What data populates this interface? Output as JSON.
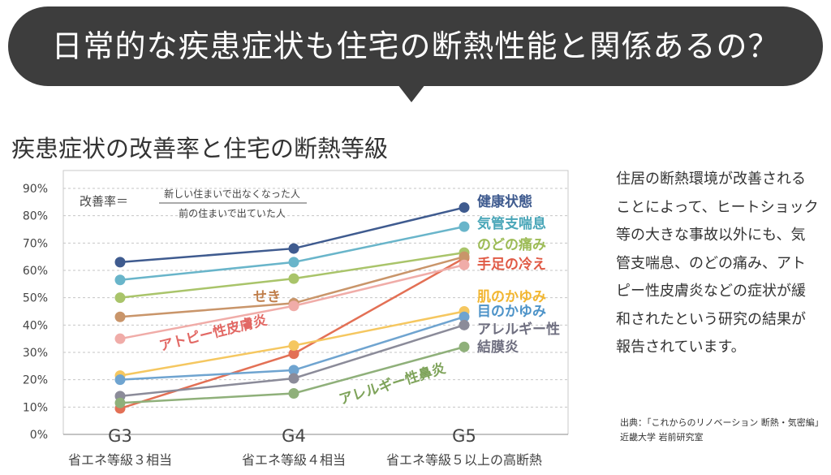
{
  "banner": {
    "title": "日常的な疾患症状も住宅の断熱性能と関係あるの？"
  },
  "subtitle": "疾患症状の改善率と住宅の断熱等級",
  "formula": {
    "label": "改善率＝",
    "numerator": "新しい住まいで出なくなった人",
    "denominator": "前の住まいで出ていた人"
  },
  "side_text": "住居の断熱環境が改善されることによって、ヒートショック等の大きな事故以外にも、気管支喘息、のどの痛み、アトピー性皮膚炎などの症状が緩和されたという研究の結果が報告されています。",
  "source": {
    "line1": "出典：「これからのリノベーション 断熱・気密編」",
    "line2": "近畿大学 岩前研究室"
  },
  "chart_data": {
    "type": "line",
    "categories": [
      "G3",
      "G4",
      "G5"
    ],
    "category_sublabels": [
      "省エネ等級３相当",
      "省エネ等級４相当",
      "省エネ等級５以上の高断熱"
    ],
    "ylim": [
      0,
      90
    ],
    "yticks": [
      "0%",
      "10%",
      "20%",
      "30%",
      "40%",
      "50%",
      "60%",
      "70%",
      "80%",
      "90%"
    ],
    "grid": "horizontal dashed",
    "series": [
      {
        "name": "健康状態",
        "color": "#3f5b8f",
        "values": [
          63,
          68,
          83
        ]
      },
      {
        "name": "気管支喘息",
        "color": "#69b5ca",
        "values": [
          56.5,
          63,
          76
        ]
      },
      {
        "name": "のどの痛み",
        "color": "#a9c46a",
        "values": [
          50,
          57,
          66.5
        ]
      },
      {
        "name": "手足の冷え",
        "color": "#e37055",
        "values": [
          9.5,
          29.5,
          64.5
        ]
      },
      {
        "name": "せき",
        "color": "#c9956a",
        "values": [
          43,
          48,
          65
        ]
      },
      {
        "name": "アトピー性皮膚炎",
        "color": "#f0aca8",
        "values": [
          35,
          47,
          62
        ]
      },
      {
        "name": "肌のかゆみ",
        "color": "#f5c760",
        "values": [
          21.5,
          32.5,
          45
        ]
      },
      {
        "name": "目のかゆみ",
        "color": "#6fa4d0",
        "values": [
          20,
          23.5,
          43
        ]
      },
      {
        "name": "アレルギー性結膜炎",
        "color": "#8b8b99",
        "values": [
          14,
          20.5,
          40
        ]
      },
      {
        "name": "アレルギー性鼻炎",
        "color": "#8fb07a",
        "values": [
          11.5,
          15,
          32
        ]
      }
    ],
    "labels": [
      {
        "text": "健康状態",
        "color": "#3f5b8f"
      },
      {
        "text": "気管支喘息",
        "color": "#4aa6b8"
      },
      {
        "text": "のどの痛み",
        "color": "#9cbb55"
      },
      {
        "text": "手足の冷え",
        "color": "#e05a45"
      },
      {
        "text": "肌のかゆみ",
        "color": "#f2b630"
      },
      {
        "text": "目のかゆみ",
        "color": "#4d93c8"
      },
      {
        "text": "アレルギー性",
        "color": "#6f6f80"
      },
      {
        "text": "結膜炎",
        "color": "#6f6f80"
      },
      {
        "text": "せき",
        "color": "#c07f4c"
      },
      {
        "text": "アトピー性皮膚炎",
        "color": "#e26864"
      },
      {
        "text": "アレルギー性鼻炎",
        "color": "#7ea35a"
      }
    ]
  }
}
